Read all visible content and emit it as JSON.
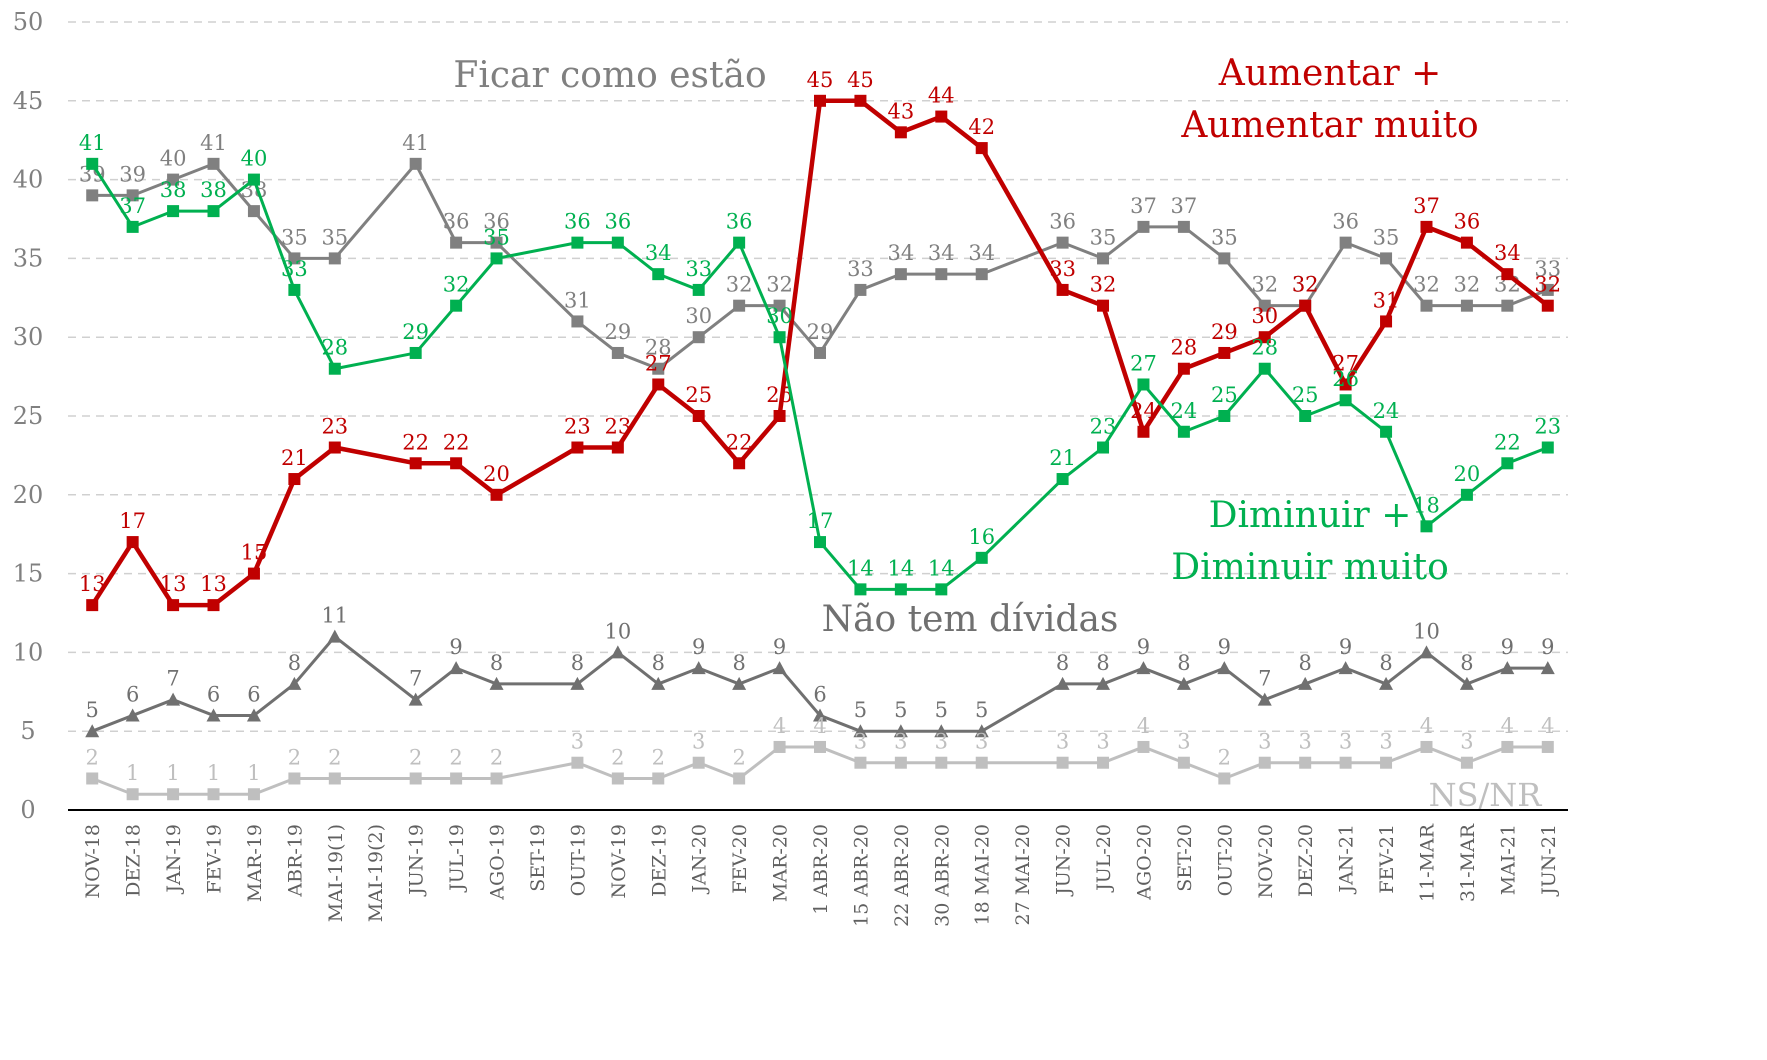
{
  "chart_data": {
    "type": "line",
    "categories": [
      "NOV-18",
      "DEZ-18",
      "JAN-19",
      "FEV-19",
      "MAR-19",
      "ABR-19",
      "MAI-19(1)",
      "MAI-19(2)",
      "JUN-19",
      "JUL-19",
      "AGO-19",
      "SET-19",
      "OUT-19",
      "NOV-19",
      "DEZ-19",
      "JAN-20",
      "FEV-20",
      "MAR-20",
      "1 ABR-20",
      "15 ABR-20",
      "22 ABR-20",
      "30 ABR-20",
      "18 MAI-20",
      "27 MAI-20",
      "JUN-20",
      "JUL-20",
      "AGO-20",
      "SET-20",
      "OUT-20",
      "NOV-20",
      "DEZ-20",
      "JAN-21",
      "FEV-21",
      "11-MAR",
      "31-MAR",
      "MAI-21",
      "JUN-21"
    ],
    "series": [
      {
        "name": "Ficar como estão",
        "color": "#808080",
        "marker": "square",
        "values": [
          39,
          39,
          40,
          41,
          38,
          35,
          35,
          null,
          41,
          36,
          36,
          null,
          31,
          29,
          28,
          30,
          32,
          32,
          29,
          33,
          34,
          34,
          34,
          null,
          36,
          35,
          37,
          37,
          35,
          32,
          32,
          36,
          35,
          32,
          32,
          32,
          33
        ]
      },
      {
        "name": "Aumentar + Aumentar muito",
        "color": "#c00000",
        "marker": "square",
        "values": [
          13,
          17,
          13,
          13,
          15,
          21,
          23,
          null,
          22,
          22,
          20,
          null,
          23,
          23,
          27,
          25,
          22,
          25,
          45,
          45,
          43,
          44,
          42,
          null,
          33,
          32,
          24,
          28,
          29,
          30,
          32,
          27,
          31,
          37,
          36,
          34,
          32
        ]
      },
      {
        "name": "Diminuir + Diminuir muito",
        "color": "#00b050",
        "marker": "square",
        "values": [
          41,
          37,
          38,
          38,
          40,
          33,
          28,
          null,
          29,
          32,
          35,
          null,
          36,
          36,
          34,
          33,
          36,
          30,
          17,
          14,
          14,
          14,
          16,
          null,
          21,
          23,
          27,
          24,
          25,
          28,
          25,
          26,
          24,
          18,
          20,
          22,
          23
        ]
      },
      {
        "name": "Não tem dívidas",
        "color": "#707070",
        "marker": "triangle",
        "values": [
          5,
          6,
          7,
          6,
          6,
          8,
          11,
          null,
          7,
          9,
          8,
          null,
          8,
          10,
          8,
          9,
          8,
          9,
          6,
          5,
          5,
          5,
          5,
          null,
          8,
          8,
          9,
          8,
          9,
          7,
          8,
          9,
          8,
          10,
          8,
          9,
          9
        ]
      },
      {
        "name": "NS/NR",
        "color": "#bfbfbf",
        "marker": "square",
        "values": [
          2,
          1,
          1,
          1,
          1,
          2,
          2,
          null,
          2,
          2,
          2,
          null,
          3,
          2,
          2,
          3,
          2,
          4,
          4,
          3,
          3,
          3,
          3,
          null,
          3,
          3,
          4,
          3,
          2,
          3,
          3,
          3,
          3,
          4,
          3,
          4,
          4
        ]
      }
    ],
    "ylim": [
      0,
      50
    ],
    "yticks": [
      0,
      5,
      10,
      15,
      20,
      25,
      30,
      35,
      40,
      45,
      50
    ],
    "grid": true
  }
}
